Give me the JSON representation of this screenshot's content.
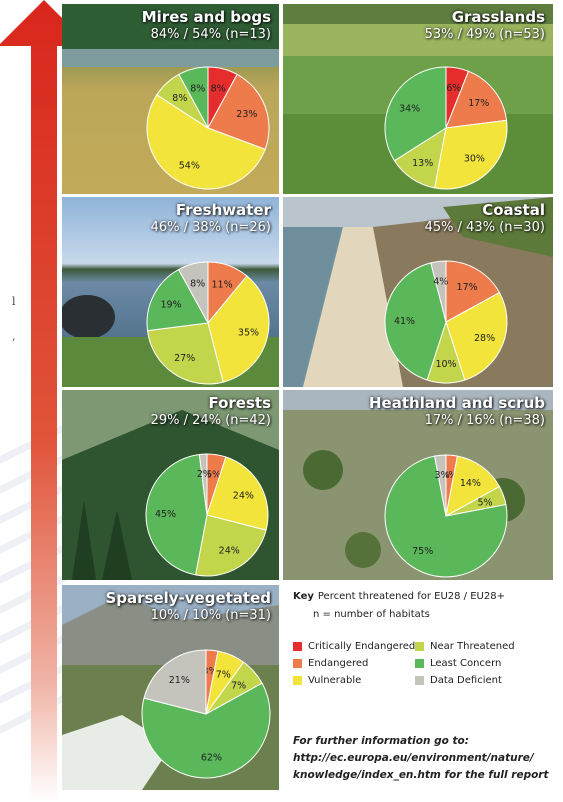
{
  "side_text": [
    "l",
    ","
  ],
  "colors": {
    "critically_endangered": "#e52d2d",
    "endangered": "#ee7b4b",
    "vulnerable": "#f2e43a",
    "near_threatened": "#c3d64b",
    "least_concern": "#5bb85a",
    "data_deficient": "#c4c4bc"
  },
  "chart_data": [
    {
      "type": "pie",
      "title": "Mires and bogs",
      "subtitle": "84% / 54% (n=13)",
      "categories": [
        "Critically Endangered",
        "Endangered",
        "Vulnerable",
        "Near Threatened",
        "Least Concern"
      ],
      "values": [
        8,
        23,
        54,
        8,
        8
      ],
      "labels": [
        "8%",
        "23%",
        "54%",
        "8%",
        "8%"
      ]
    },
    {
      "type": "pie",
      "title": "Grasslands",
      "subtitle": "53% / 49% (n=53)",
      "categories": [
        "Critically Endangered",
        "Endangered",
        "Vulnerable",
        "Near Threatened",
        "Least Concern"
      ],
      "values": [
        6,
        17,
        30,
        13,
        34
      ],
      "labels": [
        "6%",
        "17%",
        "30%",
        "13%",
        "34%"
      ]
    },
    {
      "type": "pie",
      "title": "Freshwater",
      "subtitle": "46% / 38% (n=26)",
      "categories": [
        "Endangered",
        "Vulnerable",
        "Near Threatened",
        "Least Concern",
        "Data Deficient"
      ],
      "values": [
        11,
        35,
        27,
        19,
        8
      ],
      "labels": [
        "11%",
        "35%",
        "27%",
        "19%",
        "8%"
      ]
    },
    {
      "type": "pie",
      "title": "Coastal",
      "subtitle": "45% / 43% (n=30)",
      "categories": [
        "Endangered",
        "Vulnerable",
        "Near Threatened",
        "Least Concern",
        "Data Deficient"
      ],
      "values": [
        17,
        28,
        10,
        41,
        4
      ],
      "labels": [
        "17%",
        "28%",
        "10%",
        "41%",
        "4%"
      ]
    },
    {
      "type": "pie",
      "title": "Forests",
      "subtitle": "29% / 24% (n=42)",
      "categories": [
        "Endangered",
        "Vulnerable",
        "Near Threatened",
        "Least Concern",
        "Data Deficient"
      ],
      "values": [
        5,
        24,
        24,
        45,
        2
      ],
      "labels": [
        "5%",
        "24%",
        "24%",
        "45%",
        "2%"
      ]
    },
    {
      "type": "pie",
      "title": "Heathland and scrub",
      "subtitle": "17% / 16% (n=38)",
      "categories": [
        "Endangered",
        "Vulnerable",
        "Near Threatened",
        "Least Concern",
        "Data Deficient"
      ],
      "values": [
        3,
        14,
        5,
        75,
        3
      ],
      "labels": [
        "3%",
        "14%",
        "5%",
        "75%",
        "3%"
      ]
    },
    {
      "type": "pie",
      "title": "Sparsely-vegetated",
      "subtitle": "10% / 10% (n=31)",
      "categories": [
        "Endangered",
        "Vulnerable",
        "Near Threatened",
        "Least Concern",
        "Data Deficient"
      ],
      "values": [
        3,
        7,
        7,
        62,
        21
      ],
      "labels": [
        "3%",
        "7%",
        "7%",
        "62%",
        "21%"
      ]
    }
  ],
  "key": {
    "title": "Key",
    "description": "Percent threatened for EU28 / EU28+",
    "n_note": "n = number of habitats",
    "items": [
      {
        "label": "Critically Endangered",
        "color": "#e52d2d"
      },
      {
        "label": "Near Threatened",
        "color": "#c3d64b"
      },
      {
        "label": "Endangered",
        "color": "#ee7b4b"
      },
      {
        "label": "Least Concern",
        "color": "#5bb85a"
      },
      {
        "label": "Vulnerable",
        "color": "#f2e43a"
      },
      {
        "label": "Data Deficient",
        "color": "#c4c4bc"
      }
    ]
  },
  "info": {
    "line1": "For further information go to:",
    "line2": "http://ec.europa.eu/environment/nature/",
    "line3": "knowledge/index_en.htm for the full report"
  }
}
